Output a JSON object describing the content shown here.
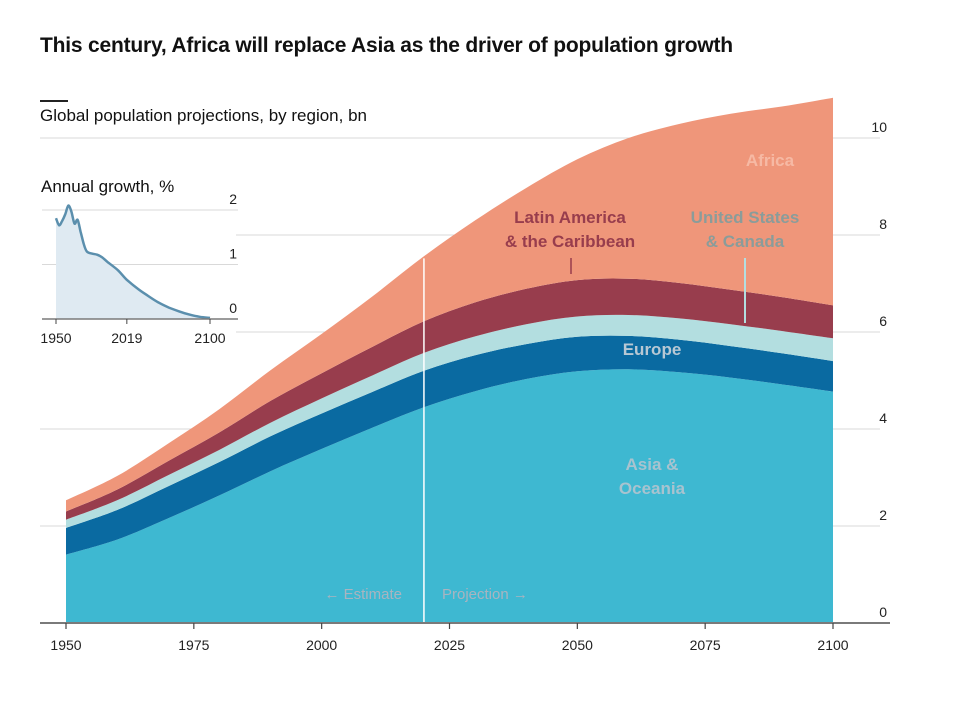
{
  "title": "This century, Africa will replace Asia as the driver of population growth",
  "subtitle": "Global population projections, by region, bn",
  "colors": {
    "asia_oceania": "#3eb8d1",
    "europe": "#0a6aa1",
    "us_canada": "#b3dee0",
    "latin_america": "#983d4d",
    "africa": "#ef967a",
    "divider": "#ffffff",
    "grid": "#d9d9d9",
    "inset_line": "#5b8fad",
    "inset_fill": "#dfeaf2"
  },
  "labels": {
    "africa": "Africa",
    "latin_america_1": "Latin America",
    "latin_america_2": "& the Caribbean",
    "us_canada_1": "United States",
    "us_canada_2": "& Canada",
    "europe": "Europe",
    "asia_1": "Asia &",
    "asia_2": "Oceania",
    "estimate": "← Estimate",
    "projection": "Projection →"
  },
  "chart_data": [
    {
      "type": "area",
      "stacked": true,
      "title": "Global population projections, by region, bn",
      "xlabel": "",
      "ylabel": "bn",
      "x": [
        1950,
        1960,
        1970,
        1980,
        1990,
        2000,
        2010,
        2020,
        2030,
        2040,
        2050,
        2060,
        2070,
        2080,
        2090,
        2100
      ],
      "xticks": [
        1950,
        1975,
        2000,
        2025,
        2050,
        2075,
        2100
      ],
      "yticks": [
        0,
        2,
        4,
        6,
        8,
        10
      ],
      "xlim": [
        1950,
        2100
      ],
      "ylim": [
        0,
        10.9
      ],
      "estimate_projection_split": 2020,
      "series": [
        {
          "name": "Asia & Oceania",
          "key": "asia_oceania",
          "values": [
            1.41,
            1.72,
            2.16,
            2.63,
            3.13,
            3.59,
            4.03,
            4.45,
            4.78,
            5.03,
            5.19,
            5.23,
            5.17,
            5.06,
            4.92,
            4.77
          ]
        },
        {
          "name": "Europe",
          "key": "europe",
          "values": [
            0.55,
            0.61,
            0.66,
            0.69,
            0.72,
            0.73,
            0.74,
            0.75,
            0.74,
            0.72,
            0.71,
            0.69,
            0.67,
            0.65,
            0.64,
            0.63
          ]
        },
        {
          "name": "United States & Canada",
          "key": "us_canada",
          "values": [
            0.17,
            0.2,
            0.23,
            0.25,
            0.28,
            0.31,
            0.34,
            0.37,
            0.39,
            0.41,
            0.42,
            0.43,
            0.44,
            0.45,
            0.46,
            0.47
          ]
        },
        {
          "name": "Latin America & the Caribbean",
          "key": "latin_america",
          "values": [
            0.17,
            0.22,
            0.29,
            0.36,
            0.45,
            0.52,
            0.59,
            0.65,
            0.7,
            0.73,
            0.75,
            0.75,
            0.73,
            0.71,
            0.7,
            0.68
          ]
        },
        {
          "name": "Africa",
          "key": "africa",
          "values": [
            0.23,
            0.28,
            0.36,
            0.48,
            0.63,
            0.81,
            1.04,
            1.34,
            1.69,
            2.08,
            2.49,
            2.9,
            3.28,
            3.63,
            3.93,
            4.28
          ]
        }
      ],
      "annotations": [
        "Africa",
        "Latin America & the Caribbean",
        "United States & Canada",
        "Europe",
        "Asia & Oceania",
        "← Estimate",
        "Projection →"
      ]
    },
    {
      "type": "area",
      "title": "Annual growth, %",
      "x": [
        1950,
        1953,
        1956,
        1959,
        1962,
        1965,
        1968,
        1971,
        1974,
        1977,
        1980,
        1985,
        1990,
        1995,
        2000,
        2010,
        2019,
        2030,
        2040,
        2050,
        2060,
        2070,
        2080,
        2090,
        2100
      ],
      "values": [
        1.85,
        1.72,
        1.8,
        1.92,
        2.08,
        1.97,
        1.75,
        1.82,
        1.6,
        1.38,
        1.24,
        1.2,
        1.18,
        1.13,
        1.05,
        0.9,
        0.72,
        0.55,
        0.42,
        0.3,
        0.21,
        0.14,
        0.08,
        0.04,
        0.02
      ],
      "xticks": [
        1950,
        2019,
        2100
      ],
      "yticks": [
        0,
        1,
        2
      ],
      "xlim": [
        1950,
        2100
      ],
      "ylim": [
        0,
        2
      ]
    }
  ]
}
